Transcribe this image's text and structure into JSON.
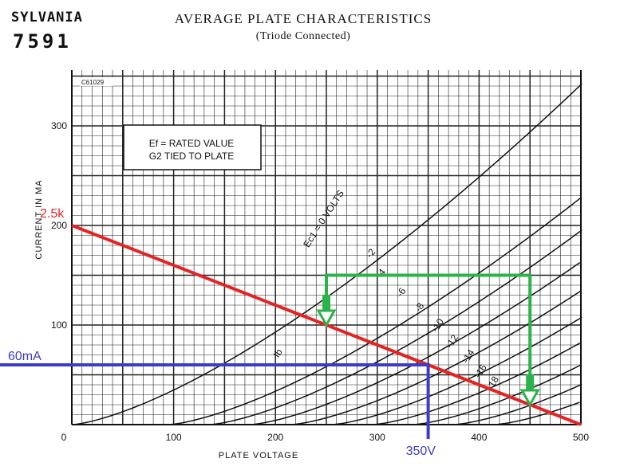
{
  "header": {
    "brand": "SYLVANIA",
    "tube_number": "7591",
    "title": "AVERAGE PLATE CHARACTERISTICS",
    "subtitle": "(Triode Connected)"
  },
  "chart_data": {
    "type": "line",
    "title": "AVERAGE PLATE CHARACTERISTICS",
    "subtitle": "(Triode Connected)",
    "xlabel": "PLATE VOLTAGE",
    "ylabel": "CURRENT IN MA",
    "xlim": [
      0,
      500
    ],
    "ylim": [
      0,
      350
    ],
    "x_ticks": [
      0,
      100,
      200,
      300,
      400,
      500
    ],
    "y_ticks": [
      100,
      200,
      300
    ],
    "origin_label": "0",
    "grid": true,
    "drawing_code": "C61029",
    "annotation_box": [
      "Ef = RATED VALUE",
      "G2 TIED TO PLATE"
    ],
    "curve_group_label": "Ib",
    "grid_bias_curves": [
      {
        "label": "Ec1 = 0 VOLTS",
        "ec": 0
      },
      {
        "label": "-2",
        "ec": -2
      },
      {
        "label": "-4",
        "ec": -4
      },
      {
        "label": "-6",
        "ec": -6
      },
      {
        "label": "-8",
        "ec": -8
      },
      {
        "label": "-10",
        "ec": -10
      },
      {
        "label": "-12",
        "ec": -12
      },
      {
        "label": "-14",
        "ec": -14
      },
      {
        "label": "-16",
        "ec": -16
      },
      {
        "label": "-18",
        "ec": -18
      }
    ],
    "overlays": {
      "load_line": {
        "label": "2.5k",
        "color": "#e32424",
        "x": [
          0,
          500
        ],
        "y": [
          200,
          0
        ]
      },
      "operating_point": {
        "voltage_label": "350V",
        "current_label": "60mA",
        "color": "#3c3cc8",
        "x": 350,
        "y": 60
      },
      "swing": {
        "color": "#2bb24a",
        "x_left": 250,
        "x_right": 450,
        "y_top": 150,
        "y_left_end": 100,
        "y_right_end": 20
      }
    }
  }
}
